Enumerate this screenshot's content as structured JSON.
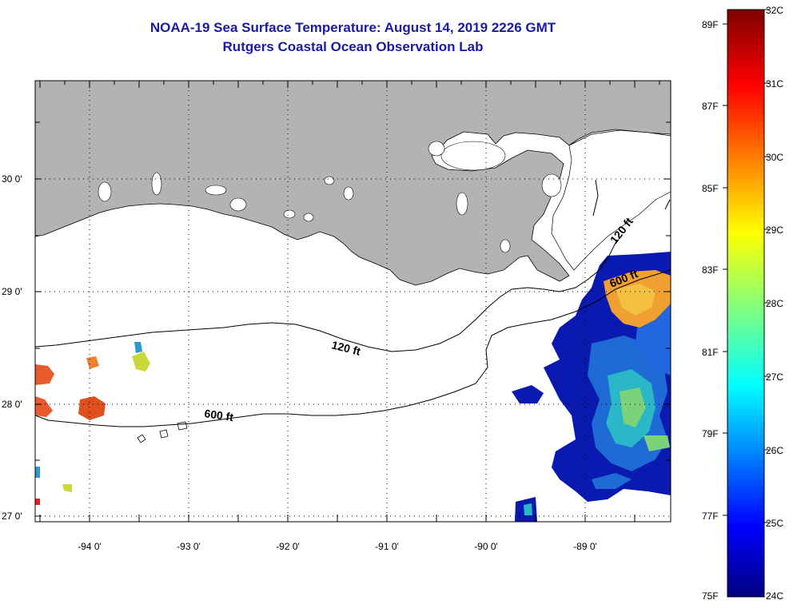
{
  "header": {
    "title": "NOAA-19 Sea Surface Temperature:  August 14, 2019 2226 GMT",
    "subtitle": "Rutgers Coastal Ocean Observation Lab"
  },
  "map": {
    "lat_labels": [
      "30 0'",
      "29 0'",
      "28 0'",
      "27 0'"
    ],
    "lon_labels": [
      "-94 0'",
      "-93 0'",
      "-92 0'",
      "-91 0'",
      "-90 0'",
      "-89 0'"
    ],
    "contours": [
      "120 ft",
      "600 ft",
      "120 ft",
      "600 ft"
    ],
    "colors": {
      "land": "#b3b3b3",
      "ocean": "#ffffff"
    }
  },
  "colorbar": {
    "fahrenheit": [
      "89F",
      "87F",
      "85F",
      "83F",
      "81F",
      "79F",
      "77F",
      "75F"
    ],
    "celsius": [
      "32C",
      "31C",
      "30C",
      "29C",
      "28C",
      "27C",
      "26C",
      "25C",
      "24C"
    ]
  }
}
